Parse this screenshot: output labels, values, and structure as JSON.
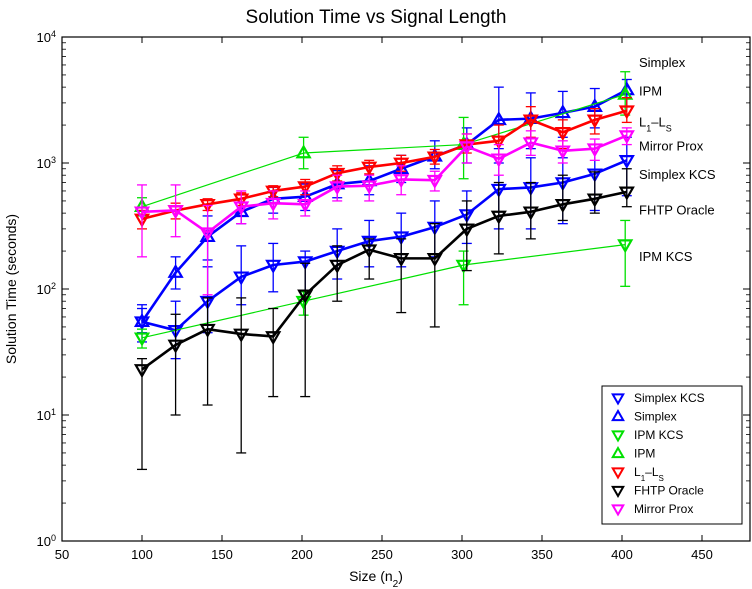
{
  "chart_data": {
    "type": "line",
    "title": "Solution Time vs Signal Length",
    "xlabel": "Size (n",
    "xlabel_sub": "2",
    "xlabel_close": ")",
    "ylabel": "Solution Time (seconds)",
    "xlim": [
      50,
      480
    ],
    "ylim": [
      1,
      10000
    ],
    "yscale": "log",
    "xticks": [
      50,
      100,
      150,
      200,
      250,
      300,
      350,
      400,
      450
    ],
    "xtick_labels": [
      "50",
      "100",
      "150",
      "200",
      "250",
      "300",
      "350",
      "400",
      "450"
    ],
    "yticks": [
      1,
      10,
      100,
      1000,
      10000
    ],
    "ytick_labels": [
      {
        "base": "10",
        "exp": "0"
      },
      {
        "base": "10",
        "exp": "1"
      },
      {
        "base": "10",
        "exp": "2"
      },
      {
        "base": "10",
        "exp": "3"
      },
      {
        "base": "10",
        "exp": "4"
      }
    ],
    "grid": false,
    "legend_position": "bottom-right",
    "series": [
      {
        "name": "Simplex KCS",
        "label_main": "Simplex KCS",
        "label_sub": "",
        "color": "#0000ff",
        "marker": "triangle-down",
        "x": [
          100,
          121,
          141,
          162,
          182,
          202,
          222,
          242,
          262,
          283,
          303,
          323,
          343,
          363,
          383,
          403
        ],
        "y": [
          55,
          47,
          80,
          125,
          155,
          165,
          200,
          240,
          260,
          310,
          390,
          620,
          640,
          700,
          820,
          1050
        ],
        "err_low": [
          38,
          28,
          45,
          75,
          95,
          95,
          120,
          150,
          150,
          180,
          230,
          300,
          300,
          330,
          420,
          550
        ],
        "err_high": [
          75,
          80,
          150,
          220,
          230,
          200,
          300,
          350,
          400,
          500,
          600,
          1000,
          1100,
          1100,
          1400,
          1600
        ]
      },
      {
        "name": "Simplex",
        "label_main": "Simplex",
        "label_sub": "",
        "color": "#0000ff",
        "marker": "triangle-up",
        "x": [
          100,
          121,
          141,
          162,
          182,
          202,
          222,
          242,
          262,
          283,
          303,
          323,
          343,
          363,
          383,
          403
        ],
        "y": [
          55,
          135,
          260,
          410,
          520,
          540,
          680,
          720,
          900,
          1130,
          1400,
          2200,
          2250,
          2500,
          2800,
          3800
        ],
        "err_low": [
          45,
          100,
          170,
          330,
          400,
          420,
          530,
          560,
          700,
          900,
          1000,
          1300,
          1300,
          1600,
          1900,
          2800
        ],
        "err_high": [
          70,
          180,
          380,
          520,
          640,
          680,
          870,
          950,
          1150,
          1500,
          1900,
          4000,
          3600,
          3700,
          3900,
          4600
        ]
      },
      {
        "name": "IPM KCS",
        "label_main": "IPM KCS",
        "label_sub": "",
        "color": "#00e000",
        "marker": "triangle-down",
        "x": [
          100,
          201,
          301,
          402
        ],
        "y": [
          41,
          80,
          155,
          225
        ],
        "err_low": [
          34,
          62,
          75,
          105
        ],
        "err_high": [
          48,
          95,
          200,
          350
        ]
      },
      {
        "name": "IPM",
        "label_main": "IPM",
        "label_sub": "",
        "color": "#00e000",
        "marker": "triangle-up",
        "x": [
          100,
          201,
          301,
          402
        ],
        "y": [
          450,
          1200,
          1400,
          3500
        ],
        "err_low": [
          380,
          900,
          750,
          2400
        ],
        "err_high": [
          530,
          1600,
          2300,
          5300
        ]
      },
      {
        "name": "L1-LS",
        "label_main": "L",
        "label_sub": "1",
        "label_mid": "–L",
        "label_sub2": "S",
        "color": "#ff0000",
        "marker": "triangle-down",
        "x": [
          100,
          121,
          141,
          162,
          182,
          202,
          222,
          242,
          262,
          283,
          303,
          323,
          343,
          363,
          383,
          403
        ],
        "y": [
          360,
          420,
          470,
          520,
          600,
          650,
          830,
          930,
          1000,
          1120,
          1400,
          1500,
          2200,
          1750,
          2200,
          2600
        ],
        "err_low": [
          300,
          360,
          420,
          460,
          540,
          560,
          720,
          820,
          860,
          980,
          1200,
          1100,
          1600,
          1300,
          1700,
          2100
        ],
        "err_high": [
          420,
          480,
          520,
          580,
          660,
          740,
          950,
          1050,
          1150,
          1280,
          1700,
          2000,
          2800,
          2200,
          2700,
          3300
        ]
      },
      {
        "name": "FHTP Oracle",
        "label_main": "FHTP Oracle",
        "label_sub": "",
        "color": "#000000",
        "marker": "triangle-down",
        "x": [
          100,
          121,
          141,
          162,
          182,
          202,
          222,
          242,
          262,
          283,
          303,
          323,
          343,
          363,
          383,
          403
        ],
        "y": [
          23,
          36,
          48,
          44,
          42,
          90,
          155,
          205,
          175,
          175,
          300,
          380,
          410,
          470,
          520,
          590
        ],
        "err_low": [
          3.7,
          10,
          12,
          5,
          14,
          14,
          80,
          120,
          65,
          50,
          140,
          190,
          250,
          350,
          400,
          450
        ],
        "err_high": [
          28,
          63,
          85,
          85,
          70,
          160,
          220,
          250,
          250,
          330,
          500,
          700,
          700,
          800,
          850,
          900
        ]
      },
      {
        "name": "Mirror Prox",
        "label_main": "Mirror Prox",
        "label_sub": "",
        "color": "#ff00ff",
        "marker": "triangle-down",
        "x": [
          100,
          121,
          141,
          162,
          182,
          202,
          222,
          242,
          262,
          283,
          303,
          323,
          343,
          363,
          383,
          403
        ],
        "y": [
          410,
          420,
          280,
          450,
          480,
          470,
          650,
          660,
          740,
          730,
          1350,
          1080,
          1450,
          1250,
          1300,
          1650
        ],
        "err_low": [
          180,
          260,
          90,
          330,
          360,
          380,
          500,
          500,
          560,
          600,
          1000,
          800,
          1150,
          1000,
          1050,
          1400
        ],
        "err_high": [
          670,
          670,
          460,
          600,
          600,
          600,
          800,
          800,
          950,
          860,
          1700,
          1400,
          1800,
          1500,
          1550,
          1900
        ]
      }
    ],
    "inline_labels": [
      {
        "series": "Simplex",
        "value": 6200
      },
      {
        "series": "IPM",
        "value": 3700
      },
      {
        "series": "L1-LS",
        "value": 2100
      },
      {
        "series": "Mirror Prox",
        "value": 1350
      },
      {
        "series": "Simplex KCS",
        "value": 800
      },
      {
        "series": "FHTP Oracle",
        "value": 420
      },
      {
        "series": "IPM KCS",
        "value": 180
      }
    ]
  }
}
